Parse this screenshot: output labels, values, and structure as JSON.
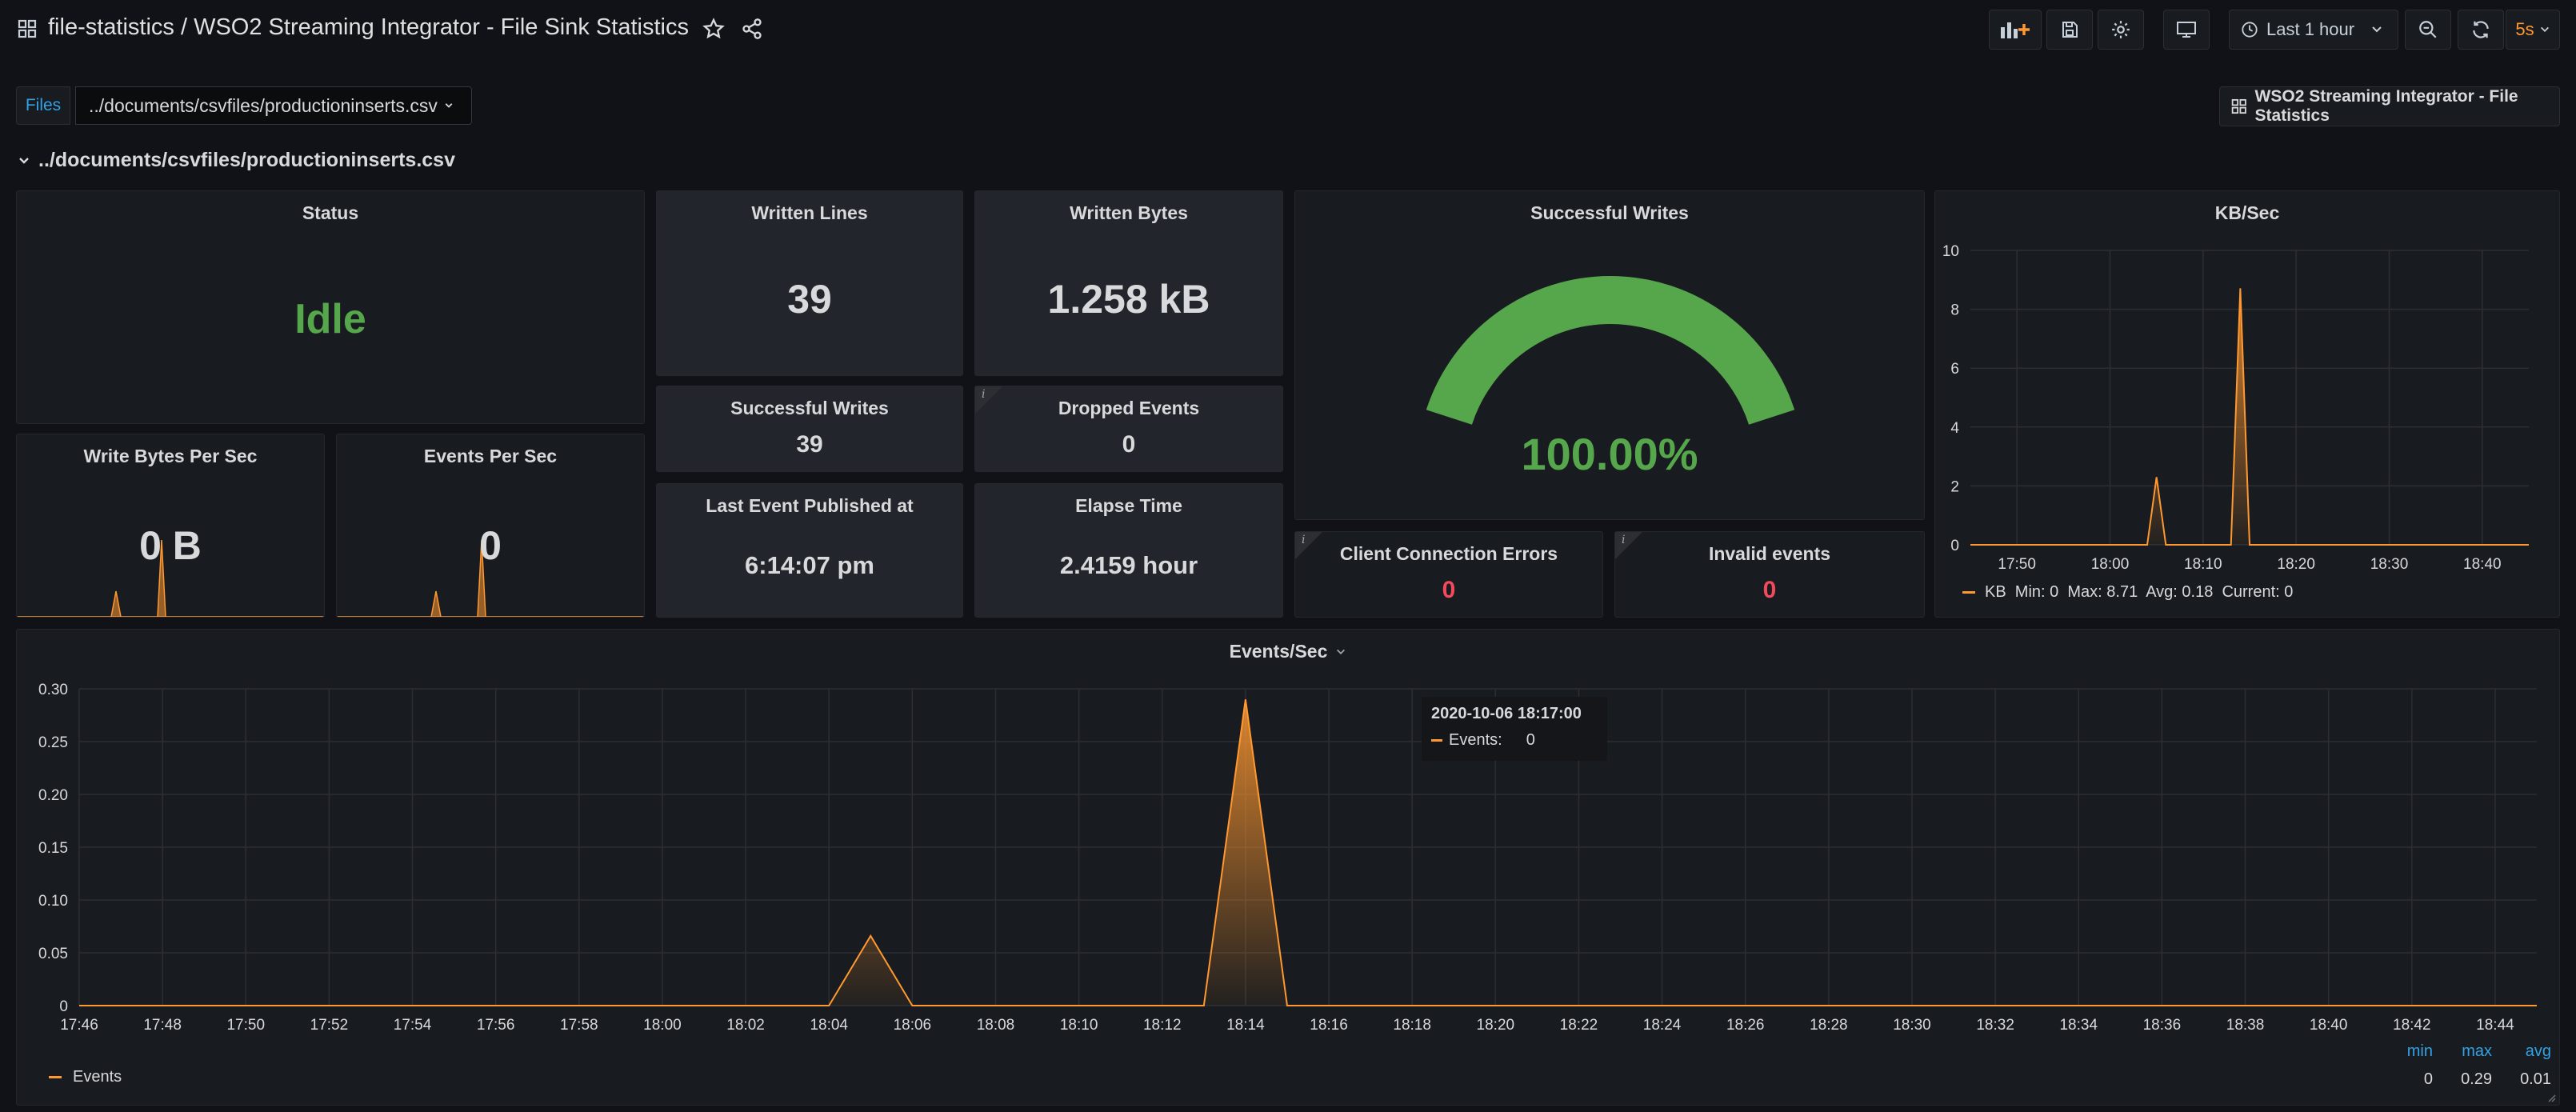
{
  "header": {
    "title": "file-statistics / WSO2 Streaming Integrator - File Sink Statistics",
    "time_range": "Last 1 hour",
    "refresh_interval": "5s"
  },
  "variables": {
    "label": "Files",
    "selected": "../documents/csvfiles/productioninserts.csv",
    "dashboard_link": "WSO2 Streaming Integrator - File Statistics"
  },
  "row": {
    "title": "../documents/csvfiles/productioninserts.csv"
  },
  "panels": {
    "status": {
      "title": "Status",
      "value": "Idle"
    },
    "written_lines": {
      "title": "Written Lines",
      "value": "39"
    },
    "written_bytes": {
      "title": "Written Bytes",
      "value": "1.258 kB"
    },
    "successful_writes_stat": {
      "title": "Successful Writes",
      "value": "39"
    },
    "dropped_events": {
      "title": "Dropped Events",
      "value": "0"
    },
    "last_event": {
      "title": "Last Event Published at",
      "value": "6:14:07 pm"
    },
    "elapse_time": {
      "title": "Elapse Time",
      "value": "2.4159 hour"
    },
    "write_bytes_per_sec": {
      "title": "Write Bytes Per Sec",
      "value": "0 B"
    },
    "events_per_sec_stat": {
      "title": "Events Per Sec",
      "value": "0"
    },
    "gauge": {
      "title": "Successful Writes",
      "value": "100.00%",
      "fraction": 1.0
    },
    "client_errors": {
      "title": "Client Connection Errors",
      "value": "0"
    },
    "invalid_events": {
      "title": "Invalid events",
      "value": "0"
    }
  },
  "colors": {
    "green": "#56a64b",
    "orange": "#ff9830",
    "red": "#f2495c",
    "blue": "#33a2e5",
    "bg": "#111217",
    "panel": "#181b1f"
  },
  "chart_data": [
    {
      "type": "area",
      "title": "KB/Sec",
      "x": [
        "17:45",
        "17:50",
        "17:55",
        "18:00",
        "18:04",
        "18:05",
        "18:06",
        "18:10",
        "18:13",
        "18:14",
        "18:15",
        "18:20",
        "18:30",
        "18:40",
        "18:45"
      ],
      "series": [
        {
          "name": "KB",
          "values": [
            0,
            0,
            0,
            0,
            0,
            2.3,
            0,
            0,
            0,
            8.71,
            0,
            0,
            0,
            0,
            0
          ]
        }
      ],
      "x_ticks": [
        "17:50",
        "18:00",
        "18:10",
        "18:20",
        "18:30",
        "18:40"
      ],
      "ylim": [
        0,
        10
      ],
      "y_ticks": [
        "0",
        "2",
        "4",
        "6",
        "8",
        "10"
      ],
      "legend": "KB  Min: 0  Max: 8.71  Avg: 0.18  Current: 0"
    },
    {
      "type": "area",
      "title": "Events/Sec",
      "x": [
        "17:46",
        "18:04",
        "18:05",
        "18:06",
        "18:13",
        "18:14",
        "18:15",
        "18:45"
      ],
      "series": [
        {
          "name": "Events",
          "values": [
            0,
            0,
            0.066,
            0,
            0,
            0.29,
            0,
            0
          ]
        }
      ],
      "x_ticks": [
        "17:46",
        "17:48",
        "17:50",
        "17:52",
        "17:54",
        "17:56",
        "17:58",
        "18:00",
        "18:02",
        "18:04",
        "18:06",
        "18:08",
        "18:10",
        "18:12",
        "18:14",
        "18:16",
        "18:18",
        "18:20",
        "18:22",
        "18:24",
        "18:26",
        "18:28",
        "18:30",
        "18:32",
        "18:34",
        "18:36",
        "18:38",
        "18:40",
        "18:42",
        "18:44"
      ],
      "ylim": [
        0,
        0.3
      ],
      "y_ticks": [
        "0",
        "0.05",
        "0.10",
        "0.15",
        "0.20",
        "0.25",
        "0.30"
      ],
      "legend_stats": {
        "min_label": "min",
        "max_label": "max",
        "avg_label": "avg",
        "min": "0",
        "max": "0.29",
        "avg": "0.01"
      },
      "tooltip": {
        "time": "2020-10-06 18:17:00",
        "label": "Events:",
        "value": "0"
      }
    }
  ]
}
